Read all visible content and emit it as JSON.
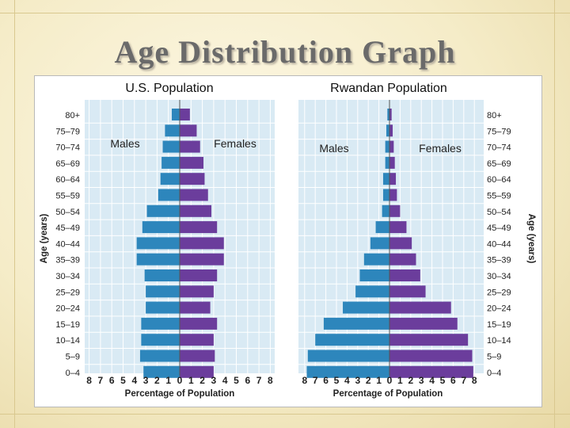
{
  "slide": {
    "title": "Age Distribution Graph"
  },
  "colors": {
    "males": "#2d86bc",
    "females": "#6b3d9c",
    "grid": "#d7dbe0",
    "panel_bg": "#d9eaf4"
  },
  "chart_data": [
    {
      "type": "bar",
      "orientation": "horizontal-population-pyramid",
      "title": "U.S. Population",
      "xlabel": "Percentage of Population",
      "ylabel": "Age (years)",
      "xlim": [
        0,
        8
      ],
      "x_ticks": [
        "8",
        "7",
        "6",
        "5",
        "4",
        "3",
        "2",
        "1",
        "0",
        "1",
        "2",
        "3",
        "4",
        "5",
        "6",
        "7",
        "8"
      ],
      "categories": [
        "80+",
        "75–79",
        "70–74",
        "65–69",
        "60–64",
        "55–59",
        "50–54",
        "45–49",
        "40–44",
        "35–39",
        "30–34",
        "25–29",
        "20–24",
        "15–19",
        "10–14",
        "5–9",
        "0–4"
      ],
      "series": [
        {
          "name": "Males",
          "values": [
            0.7,
            1.3,
            1.5,
            1.6,
            1.7,
            1.9,
            2.9,
            3.3,
            3.8,
            3.8,
            3.1,
            3.0,
            3.0,
            3.4,
            3.4,
            3.5,
            3.2
          ]
        },
        {
          "name": "Females",
          "values": [
            0.9,
            1.5,
            1.8,
            2.1,
            2.2,
            2.5,
            2.8,
            3.3,
            3.9,
            3.9,
            3.3,
            3.0,
            2.7,
            3.3,
            3.0,
            3.1,
            3.0
          ]
        }
      ]
    },
    {
      "type": "bar",
      "orientation": "horizontal-population-pyramid",
      "title": "Rwandan Population",
      "xlabel": "Percentage of Population",
      "ylabel": "Age (years)",
      "xlim": [
        0,
        8
      ],
      "x_ticks": [
        "8",
        "7",
        "6",
        "5",
        "4",
        "3",
        "2",
        "1",
        "0",
        "1",
        "2",
        "3",
        "4",
        "5",
        "6",
        "7",
        "8"
      ],
      "categories": [
        "80+",
        "75–79",
        "70–74",
        "65–69",
        "60–64",
        "55–59",
        "50–54",
        "45–49",
        "40–44",
        "35–39",
        "30–34",
        "25–29",
        "20–24",
        "15–19",
        "10–14",
        "5–9",
        "0–4"
      ],
      "series": [
        {
          "name": "Males",
          "values": [
            0.2,
            0.3,
            0.4,
            0.4,
            0.6,
            0.6,
            0.7,
            1.3,
            1.8,
            2.4,
            2.8,
            3.2,
            4.4,
            6.2,
            7.0,
            7.7,
            7.8
          ]
        },
        {
          "name": "Females",
          "values": [
            0.2,
            0.3,
            0.4,
            0.5,
            0.6,
            0.7,
            1.0,
            1.6,
            2.1,
            2.5,
            2.9,
            3.4,
            5.8,
            6.4,
            7.4,
            7.8,
            7.9
          ]
        }
      ]
    }
  ]
}
